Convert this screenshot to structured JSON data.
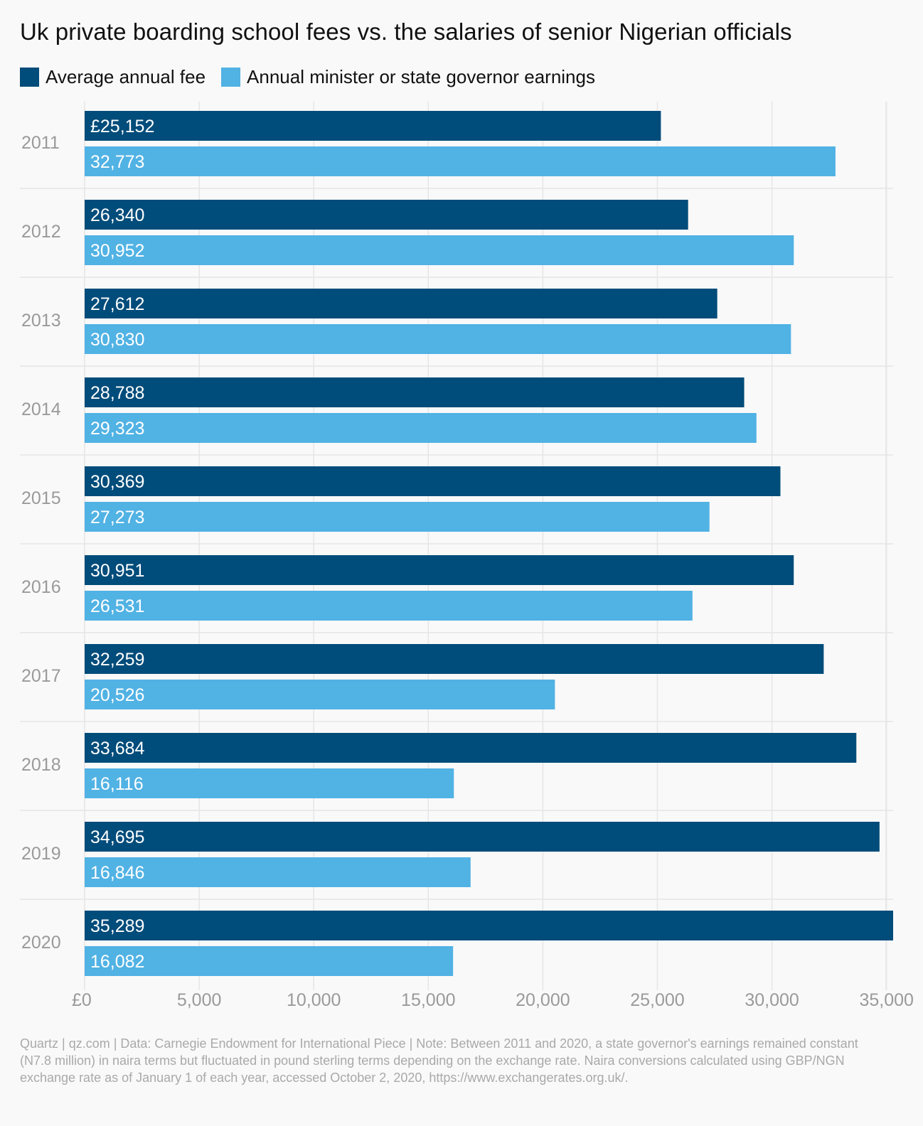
{
  "chart_data": {
    "type": "bar",
    "orientation": "horizontal",
    "title": "Uk private boarding school fees vs. the salaries of senior Nigerian officials",
    "categories": [
      "2011",
      "2012",
      "2013",
      "2014",
      "2015",
      "2016",
      "2017",
      "2018",
      "2019",
      "2020"
    ],
    "series": [
      {
        "name": "Average annual fee",
        "color": "#004c7a",
        "values": [
          25152,
          26340,
          27612,
          28788,
          30369,
          30951,
          32259,
          33684,
          34695,
          35289
        ],
        "labels": [
          "£25,152",
          "26,340",
          "27,612",
          "28,788",
          "30,369",
          "30,951",
          "32,259",
          "33,684",
          "34,695",
          "35,289"
        ]
      },
      {
        "name": "Annual minister or state governor earnings",
        "color": "#51b2e4",
        "values": [
          32773,
          30952,
          30830,
          29323,
          27273,
          26531,
          20526,
          16116,
          16846,
          16082
        ],
        "labels": [
          "32,773",
          "30,952",
          "30,830",
          "29,323",
          "27,273",
          "26,531",
          "20,526",
          "16,116",
          "16,846",
          "16,082"
        ]
      }
    ],
    "xlim": [
      0,
      35289
    ],
    "xticks": [
      0,
      5000,
      10000,
      15000,
      20000,
      25000,
      30000,
      35000
    ],
    "xtick_labels": [
      "£0",
      "5,000",
      "10,000",
      "15,000",
      "20,000",
      "25,000",
      "30,000",
      "35,000"
    ],
    "grid": true,
    "legend_position": "top-left",
    "xlabel": "",
    "ylabel": ""
  },
  "footer": {
    "note": "Quartz | qz.com | Data: Carnegie Endowment for International Piece | Note: Between 2011 and 2020, a state governor's earnings remained constant (N7.8 million) in naira terms but fluctuated in pound sterling terms depending on the exchange rate. Naira conversions calculated using GBP/NGN exchange rate as of January 1 of each year, accessed October 2, 2020, https://www.exchangerates.org.uk/."
  }
}
